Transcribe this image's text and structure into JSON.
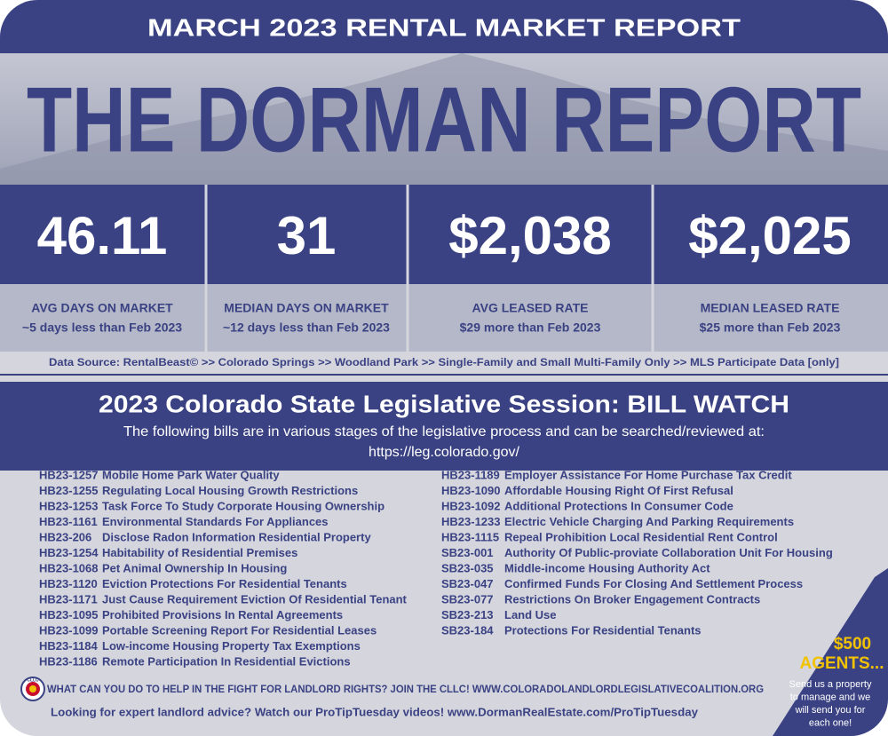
{
  "header": {
    "subtitle": "MARCH 2023 RENTAL MARKET REPORT",
    "title": "THE DORMAN REPORT"
  },
  "stats": [
    {
      "value": "46.11",
      "label": "AVG DAYS ON MARKET",
      "note": "~5 days less than Feb 2023"
    },
    {
      "value": "31",
      "label": "MEDIAN DAYS ON MARKET",
      "note": "~12 days less than Feb 2023"
    },
    {
      "value": "$2,038",
      "label": "AVG LEASED RATE",
      "note": "$29 more than Feb 2023"
    },
    {
      "value": "$2,025",
      "label": "MEDIAN LEASED RATE",
      "note": "$25 more than Feb 2023"
    }
  ],
  "data_source": "Data Source: RentalBeast© >> Colorado Springs >> Woodland Park >> Single-Family and Small Multi-Family Only >> MLS Participate Data [only]",
  "bill_watch": {
    "title": "2023 Colorado State Legislative Session: BILL WATCH",
    "intro": "The following bills are in various stages of the legislative process and can be searched/reviewed at:",
    "url": "https://leg.colorado.gov/",
    "left": [
      {
        "id": "HB23-1257",
        "name": "Mobile Home Park Water Quality"
      },
      {
        "id": "HB23-1255",
        "name": "Regulating Local Housing Growth Restrictions"
      },
      {
        "id": "HB23-1253",
        "name": "Task Force To Study Corporate Housing Ownership"
      },
      {
        "id": "HB23-1161",
        "name": "Environmental Standards For Appliances"
      },
      {
        "id": "HB23-206",
        "name": "Disclose Radon Information Residential Property"
      },
      {
        "id": "HB23-1254",
        "name": "Habitability of Residential Premises"
      },
      {
        "id": "HB23-1068",
        "name": "Pet Animal Ownership In Housing"
      },
      {
        "id": "HB23-1120",
        "name": "Eviction Protections For Residential Tenants"
      },
      {
        "id": "HB23-1171",
        "name": "Just Cause Requirement Eviction Of Residential Tenant"
      },
      {
        "id": "HB23-1095",
        "name": "Prohibited Provisions In Rental Agreements"
      },
      {
        "id": "HB23-1099",
        "name": "Portable Screening Report For Residential Leases"
      },
      {
        "id": "HB23-1184",
        "name": "Low-income Housing Property Tax Exemptions"
      },
      {
        "id": "HB23-1186",
        "name": "Remote Participation In Residential Evictions"
      }
    ],
    "right": [
      {
        "id": "HB23-1189",
        "name": "Employer Assistance For Home Purchase Tax Credit"
      },
      {
        "id": "HB23-1090",
        "name": "Affordable Housing Right Of First Refusal"
      },
      {
        "id": "HB23-1092",
        "name": "Additional Protections In Consumer Code"
      },
      {
        "id": "HB23-1233",
        "name": "Electric Vehicle Charging And Parking Requirements"
      },
      {
        "id": "HB23-1115",
        "name": "Repeal Prohibition Local Residential Rent Control"
      },
      {
        "id": "SB23-001",
        "name": "Authority Of Public-proviate Collaboration Unit For Housing"
      },
      {
        "id": "SB23-035",
        "name": "Middle-income Housing Authority Act"
      },
      {
        "id": "SB23-047",
        "name": "Confirmed Funds For Closing And Settlement Process"
      },
      {
        "id": "SB23-077",
        "name": "Restrictions On Broker Engagement Contracts"
      },
      {
        "id": "SB23-213",
        "name": "Land Use"
      },
      {
        "id": "SB23-184",
        "name": "Protections For Residential Tenants"
      }
    ]
  },
  "footer": {
    "cllc": "WHAT CAN YOU DO TO HELP IN THE FIGHT FOR LANDLORD RIGHTS? JOIN THE CLLC! WWW.COLORADOLANDLORDLEGISLATIVECOALITION.ORG",
    "logo": "CLLC",
    "protip": "Looking for expert landlord advice? Watch our ProTipTuesday videos! www.DormanRealEstate.com/ProTipTuesday"
  },
  "promo": {
    "amount": "$500",
    "title": "AGENTS...",
    "lines": [
      "Send us a property",
      "to manage and we",
      "will send you  for",
      "each one!"
    ]
  }
}
